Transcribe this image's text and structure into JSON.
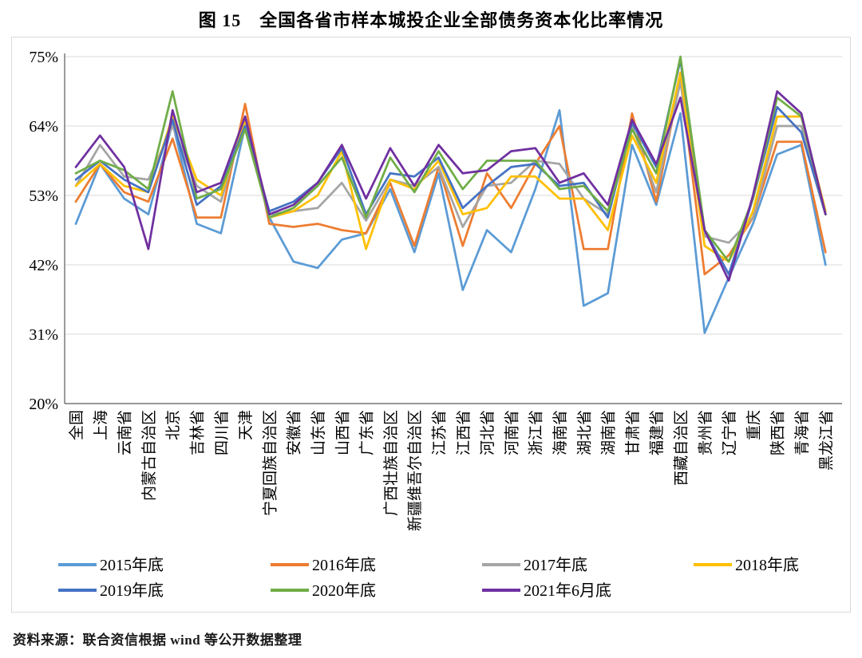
{
  "title": "图 15　全国各省市样本城投企业全部债务资本化比率情况",
  "source": "资料来源：联合资信根据 wind 等公开数据整理",
  "chart_data": {
    "type": "line",
    "title": "图 15　全国各省市样本城投企业全部债务资本化比率情况",
    "xlabel": "",
    "ylabel": "",
    "ylim": [
      20,
      75
    ],
    "y_ticks": [
      20,
      31,
      42,
      53,
      64,
      75
    ],
    "y_tick_suffix": "%",
    "grid": true,
    "legend_position": "bottom",
    "legend_items_per_row": 4,
    "categories": [
      "全国",
      "上海",
      "云南省",
      "内蒙古自治区",
      "北京",
      "吉林省",
      "四川省",
      "天津",
      "宁夏回族自治区",
      "安徽省",
      "山东省",
      "山西省",
      "广东省",
      "广西壮族自治区",
      "新疆维吾尔自治区",
      "江苏省",
      "江西省",
      "河北省",
      "河南省",
      "浙江省",
      "海南省",
      "湖北省",
      "湖南省",
      "甘肃省",
      "福建省",
      "西藏自治区",
      "贵州省",
      "辽宁省",
      "重庆",
      "陕西省",
      "青海省",
      "黑龙江省"
    ],
    "series": [
      {
        "name": "2015年底",
        "color": "#5B9BD5",
        "values": [
          48.5,
          58,
          52.5,
          50,
          64.5,
          48.5,
          47,
          64,
          49.5,
          42.5,
          41.5,
          46,
          47,
          54,
          44,
          56.5,
          38,
          47.5,
          44,
          54,
          66.5,
          35.5,
          37.5,
          61,
          51.5,
          66,
          31.2,
          40,
          48.5,
          59.5,
          61,
          42
        ]
      },
      {
        "name": "2016年底",
        "color": "#ED7D31",
        "values": [
          52,
          58,
          53.5,
          52,
          62,
          49.5,
          49.5,
          67.5,
          48.5,
          48,
          48.5,
          47.5,
          47,
          55,
          45,
          57.5,
          45,
          56.5,
          51,
          58,
          64,
          44.5,
          44.5,
          66,
          52,
          71.5,
          40.5,
          43.5,
          49.5,
          61.5,
          61.5,
          44
        ]
      },
      {
        "name": "2017年底",
        "color": "#A5A5A5",
        "values": [
          54.5,
          61,
          56,
          55.5,
          64,
          54.5,
          52,
          65.5,
          50,
          50.5,
          51,
          55,
          49,
          55.5,
          54.5,
          57.5,
          48,
          54.5,
          55,
          58.5,
          58,
          52.5,
          50,
          64,
          53.5,
          71,
          46.5,
          45.5,
          49.5,
          64,
          64,
          50
        ]
      },
      {
        "name": "2018年底",
        "color": "#FFC000",
        "values": [
          54.5,
          58,
          54.5,
          53.5,
          65.5,
          55.5,
          53,
          65,
          49.5,
          50.5,
          53,
          60,
          44.5,
          55.5,
          54,
          58.5,
          50,
          51,
          56,
          56,
          52.5,
          52.5,
          47.5,
          62.5,
          55,
          72.5,
          45,
          42.5,
          50.5,
          65.5,
          65.5,
          50.5
        ]
      },
      {
        "name": "2019年底",
        "color": "#4472C4",
        "values": [
          55.5,
          58.5,
          55.5,
          53.5,
          65,
          51.5,
          54.5,
          64,
          50.5,
          52,
          55,
          60.5,
          50,
          56.5,
          56,
          59,
          51,
          54.5,
          57.5,
          58,
          54.5,
          55,
          49.5,
          64.5,
          57.5,
          74.5,
          47.5,
          40.5,
          52.5,
          67,
          63,
          50
        ]
      },
      {
        "name": "2020年底",
        "color": "#70AD47",
        "values": [
          56.5,
          58.5,
          57,
          54,
          69.5,
          52.5,
          54,
          63.5,
          49.5,
          51,
          54.5,
          59,
          49.5,
          59,
          53.5,
          60,
          54,
          58.5,
          58.5,
          58.5,
          54,
          54.5,
          50.5,
          63.5,
          56.5,
          75,
          47.5,
          42.5,
          52.5,
          68.5,
          65.5,
          50
        ]
      },
      {
        "name": "2021年6月底",
        "color": "#7030A0",
        "values": [
          57.5,
          62.5,
          57.5,
          44.5,
          66.5,
          53.5,
          55,
          65.5,
          50,
          51.5,
          55,
          61,
          52.5,
          60.5,
          54.5,
          61,
          56.5,
          57,
          60,
          60.5,
          55,
          56.5,
          51.5,
          65,
          58,
          68.5,
          47.5,
          39.5,
          53,
          69.5,
          66,
          50
        ]
      }
    ]
  },
  "style": {
    "grid_color": "#d9d9d9",
    "axis_color": "#595959",
    "frame_color": "#d9d9d9"
  }
}
